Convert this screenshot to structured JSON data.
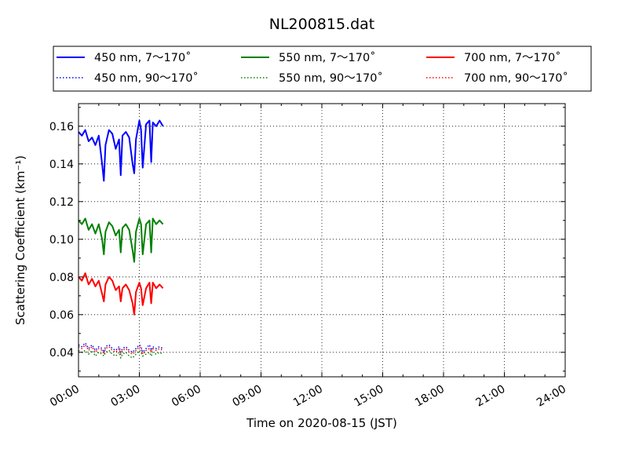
{
  "chart_data": {
    "type": "line",
    "title": "NL200815.dat",
    "xlabel": "Time on 2020-08-15 (JST)",
    "ylabel": "Scattering Coefficient (km⁻¹)",
    "xlim": [
      "00:00",
      "24:00"
    ],
    "ylim": [
      0.027,
      0.172
    ],
    "xticks": [
      "00:00",
      "03:00",
      "06:00",
      "09:00",
      "12:00",
      "15:00",
      "18:00",
      "21:00",
      "24:00"
    ],
    "yticks": [
      0.04,
      0.06,
      0.08,
      0.1,
      0.12,
      0.14,
      0.16
    ],
    "yticks_labels": [
      "0.04",
      "0.06",
      "0.08",
      "0.10",
      "0.12",
      "0.14",
      "0.16"
    ],
    "grid": true,
    "legend_position": "top",
    "x": [
      "00:00",
      "00:10",
      "00:20",
      "00:30",
      "00:40",
      "00:50",
      "01:00",
      "01:10",
      "01:15",
      "01:20",
      "01:30",
      "01:40",
      "01:50",
      "02:00",
      "02:05",
      "02:10",
      "02:20",
      "02:30",
      "02:40",
      "02:45",
      "02:50",
      "03:00",
      "03:05",
      "03:10",
      "03:20",
      "03:30",
      "03:35",
      "03:40",
      "03:50",
      "04:00",
      "04:10"
    ],
    "series": [
      {
        "name": "450 nm, 7～170˚",
        "color": "#0000ff",
        "style": "solid",
        "values": [
          0.157,
          0.155,
          0.158,
          0.152,
          0.154,
          0.15,
          0.155,
          0.14,
          0.131,
          0.15,
          0.158,
          0.156,
          0.148,
          0.153,
          0.134,
          0.155,
          0.157,
          0.154,
          0.14,
          0.135,
          0.153,
          0.163,
          0.158,
          0.138,
          0.161,
          0.163,
          0.141,
          0.162,
          0.16,
          0.163,
          0.16
        ]
      },
      {
        "name": "450 nm, 90～170˚",
        "color": "#0000ff",
        "style": "dotted",
        "values": [
          0.044,
          0.043,
          0.045,
          0.042,
          0.044,
          0.041,
          0.043,
          0.042,
          0.04,
          0.043,
          0.044,
          0.042,
          0.041,
          0.043,
          0.04,
          0.042,
          0.043,
          0.041,
          0.04,
          0.041,
          0.042,
          0.044,
          0.043,
          0.04,
          0.042,
          0.044,
          0.041,
          0.043,
          0.042,
          0.043,
          0.042
        ]
      },
      {
        "name": "550 nm, 7～170˚",
        "color": "#008000",
        "style": "solid",
        "values": [
          0.11,
          0.108,
          0.111,
          0.105,
          0.108,
          0.103,
          0.108,
          0.1,
          0.092,
          0.104,
          0.109,
          0.107,
          0.102,
          0.105,
          0.093,
          0.106,
          0.108,
          0.105,
          0.094,
          0.088,
          0.104,
          0.111,
          0.108,
          0.092,
          0.108,
          0.11,
          0.093,
          0.111,
          0.108,
          0.11,
          0.108
        ]
      },
      {
        "name": "550 nm, 90～170˚",
        "color": "#008000",
        "style": "dotted",
        "values": [
          0.041,
          0.04,
          0.041,
          0.039,
          0.041,
          0.038,
          0.04,
          0.039,
          0.038,
          0.04,
          0.041,
          0.039,
          0.038,
          0.04,
          0.037,
          0.039,
          0.04,
          0.038,
          0.037,
          0.038,
          0.039,
          0.041,
          0.04,
          0.038,
          0.039,
          0.04,
          0.038,
          0.04,
          0.039,
          0.04,
          0.039
        ]
      },
      {
        "name": "700 nm, 7～170˚",
        "color": "#ff0000",
        "style": "solid",
        "values": [
          0.08,
          0.078,
          0.082,
          0.076,
          0.079,
          0.075,
          0.078,
          0.071,
          0.067,
          0.076,
          0.08,
          0.078,
          0.073,
          0.075,
          0.067,
          0.074,
          0.076,
          0.073,
          0.066,
          0.06,
          0.072,
          0.077,
          0.074,
          0.065,
          0.074,
          0.077,
          0.066,
          0.077,
          0.074,
          0.076,
          0.074
        ]
      },
      {
        "name": "700 nm, 90～170˚",
        "color": "#ff0000",
        "style": "dotted",
        "values": [
          0.043,
          0.042,
          0.044,
          0.041,
          0.043,
          0.04,
          0.042,
          0.041,
          0.039,
          0.042,
          0.043,
          0.041,
          0.04,
          0.042,
          0.039,
          0.041,
          0.042,
          0.04,
          0.039,
          0.04,
          0.041,
          0.043,
          0.042,
          0.039,
          0.041,
          0.042,
          0.04,
          0.042,
          0.041,
          0.042,
          0.041
        ]
      }
    ]
  }
}
